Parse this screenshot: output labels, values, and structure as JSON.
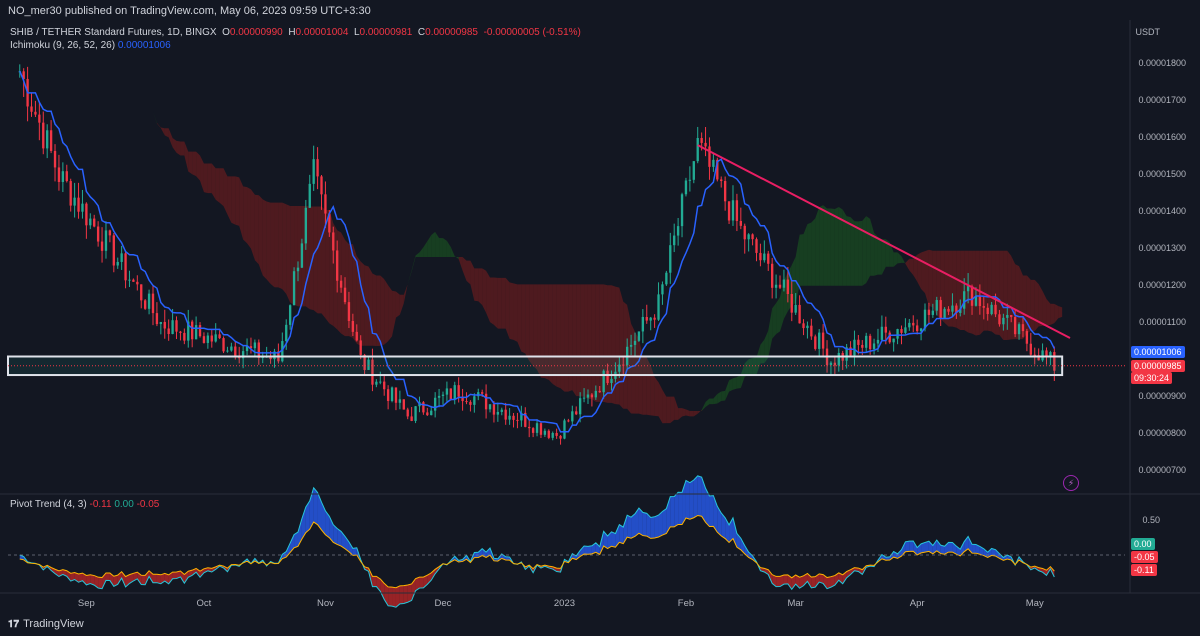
{
  "header": {
    "published": "NO_mer30 published on TradingView.com, May 06, 2023 09:59 UTC+3:30",
    "currency": "USDT"
  },
  "legend": {
    "symbol": "SHIB / TETHER Standard Futures, 1D, BINGX",
    "o_label": "O",
    "o": "0.00000990",
    "h_label": "H",
    "h": "0.00001004",
    "l_label": "L",
    "l": "0.00000981",
    "c_label": "C",
    "c": "0.00000985",
    "change": "-0.00000005 (-0.51%)",
    "ichimoku_label": "Ichimoku (9, 26, 52, 26)",
    "ichimoku_value": "0.00001006",
    "pivot_label": "Pivot Trend (4, 3)",
    "pivot_v1": "-0.11",
    "pivot_v2": "0.00",
    "pivot_v3": "-0.05"
  },
  "price_axis": [
    "0.00001800",
    "0.00001700",
    "0.00001600",
    "0.00001500",
    "0.00001400",
    "0.00001300",
    "0.00001200",
    "0.00001100",
    "0.00000900",
    "0.00000800",
    "0.00000700"
  ],
  "price_tags": {
    "ichimoku": "0.00001006",
    "last": "0.00000985",
    "countdown": "09:30:24"
  },
  "osc_axis": [
    "0.50"
  ],
  "osc_tags": {
    "a": "0.00",
    "b": "-0.05",
    "c": "-0.11"
  },
  "x_ticks": [
    "Sep",
    "Oct",
    "Nov",
    "Dec",
    "2023",
    "Feb",
    "Mar",
    "Apr",
    "May"
  ],
  "brand": "TradingView",
  "colors": {
    "bg": "#131722",
    "up": "#22ab94",
    "down": "#f23645",
    "tenkan": "#2962ff",
    "trendline": "#e91e63",
    "box": "#e0e3eb",
    "cloud_bull": "#1b5e20",
    "cloud_bear": "#7f1d1d"
  },
  "chart_data": {
    "type": "candlestick",
    "symbol": "SHIB / TETHER Standard Futures",
    "timeframe": "1D",
    "ylim": [
      6.5e-06,
      1.85e-05
    ],
    "key_points": [
      {
        "x": "Aug 15 2022",
        "y": 1.78e-05
      },
      {
        "x": "Aug 25 2022",
        "y": 1.5e-05
      },
      {
        "x": "Sep 20 2022",
        "y": 1.1e-05
      },
      {
        "x": "Oct 20 2022",
        "y": 1e-05
      },
      {
        "x": "Oct 29 2022",
        "y": 1.5e-05
      },
      {
        "x": "Nov 10 2022",
        "y": 1e-05
      },
      {
        "x": "Nov 22 2022",
        "y": 8.5e-06
      },
      {
        "x": "Dec 05 2022",
        "y": 9.2e-06
      },
      {
        "x": "Dec 30 2022",
        "y": 8e-06
      },
      {
        "x": "Jan 15 2023",
        "y": 1e-05
      },
      {
        "x": "Jan 25 2023",
        "y": 1.15e-05
      },
      {
        "x": "Feb 04 2023",
        "y": 1.58e-05
      },
      {
        "x": "Feb 15 2023",
        "y": 1.35e-05
      },
      {
        "x": "Mar 10 2023",
        "y": 1e-05
      },
      {
        "x": "Apr 15 2023",
        "y": 1.18e-05
      },
      {
        "x": "May 06 2023",
        "y": 9.85e-06
      }
    ],
    "trendline": [
      {
        "x": "Feb 04 2023",
        "y": 1.58e-05
      },
      {
        "x": "May 10 2023",
        "y": 1.06e-05
      }
    ],
    "support_zone": [
      9.6e-06,
      1.01e-05
    ],
    "oscillator": {
      "name": "Pivot Trend (4, 3)",
      "values": [
        -0.11,
        0.0,
        -0.05
      ],
      "axis_tick": 0.5
    }
  }
}
